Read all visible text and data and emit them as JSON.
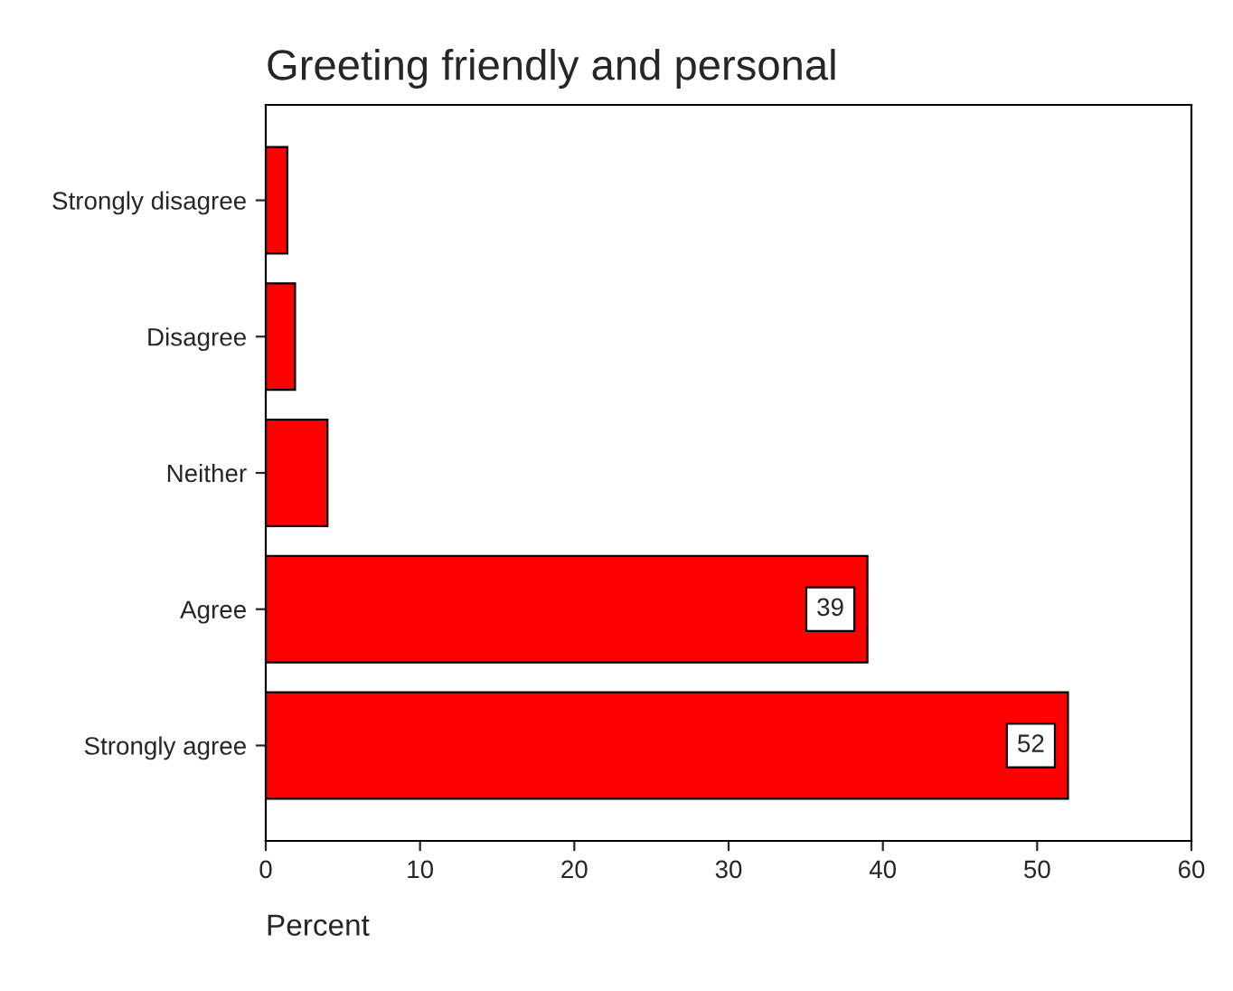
{
  "chart_data": {
    "type": "bar",
    "orientation": "horizontal",
    "title": "Greeting friendly and personal",
    "xlabel": "Percent",
    "categories": [
      "Strongly disagree",
      "Disagree",
      "Neither",
      "Agree",
      "Strongly agree"
    ],
    "values": [
      1.4,
      1.9,
      4.0,
      39,
      52
    ],
    "value_labels": [
      null,
      null,
      null,
      "39",
      "52"
    ],
    "color": "#ff0000",
    "xlim": [
      0,
      60
    ],
    "xticks": [
      0,
      10,
      20,
      30,
      40,
      50,
      60
    ],
    "grid": false
  }
}
